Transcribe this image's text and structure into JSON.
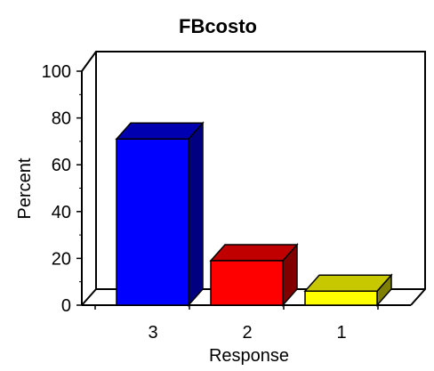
{
  "chart_data": {
    "type": "bar",
    "title": "FBcosto",
    "xlabel": "Response",
    "ylabel": "Percent",
    "categories": [
      "3",
      "2",
      "1"
    ],
    "values": [
      71,
      19,
      6
    ],
    "ylim": [
      0,
      100
    ],
    "yticks": [
      "0",
      "20",
      "40",
      "60",
      "80",
      "100"
    ],
    "grid": false,
    "legend": "none",
    "bar_colors": [
      {
        "front": "#0000ff",
        "top": "#0000b0",
        "side": "#000080"
      },
      {
        "front": "#ff0000",
        "top": "#c00000",
        "side": "#800000"
      },
      {
        "front": "#ffff00",
        "top": "#c8c800",
        "side": "#808000"
      }
    ]
  }
}
